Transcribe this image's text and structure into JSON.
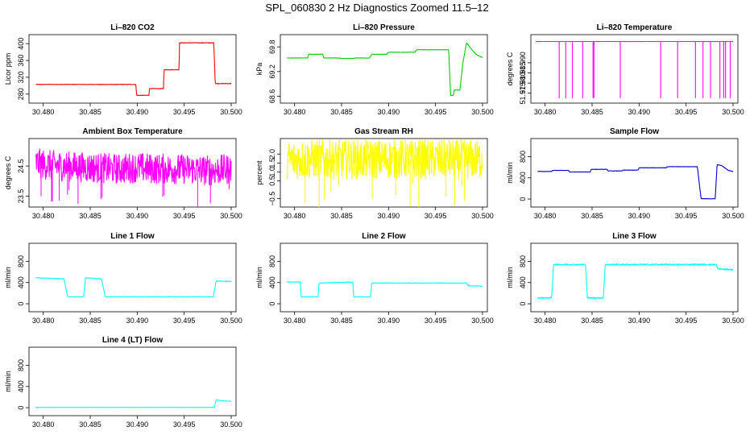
{
  "page": {
    "title": "SPL_060830  2 Hz Diagnostics Zoomed 11.5–12"
  },
  "chart_data": [
    {
      "type": "line",
      "title": "Li–820 CO2",
      "ylabel": "Licor ppm",
      "color": "#ff0000",
      "noise": 0.6,
      "xlim": [
        30.479,
        30.5
      ],
      "ylim": [
        270,
        410
      ],
      "xticks": [
        30.48,
        30.485,
        30.49,
        30.495,
        30.5
      ],
      "xtick_labels": [
        "30.480",
        "30.485",
        "30.490",
        "30.495",
        "30.500"
      ],
      "yticks": [
        280,
        320,
        360,
        400
      ],
      "ytick_labels": [
        "280",
        "320",
        "360",
        "400"
      ],
      "x": [
        30.4792,
        30.48985,
        30.48995,
        30.49125,
        30.4913,
        30.4928,
        30.49285,
        30.49445,
        30.4945,
        30.49815,
        30.4983,
        30.5
      ],
      "y": [
        303,
        303,
        277,
        277,
        293,
        293,
        338,
        338,
        402,
        402,
        305,
        305
      ]
    },
    {
      "type": "line",
      "title": "Li–820 Pressure",
      "ylabel": "kPa",
      "color": "#00cd00",
      "noise": 0.004,
      "xlim": [
        30.479,
        30.5
      ],
      "ylim": [
        68.55,
        69.98
      ],
      "xticks": [
        30.48,
        30.485,
        30.49,
        30.495,
        30.5
      ],
      "xtick_labels": [
        "30.480",
        "30.485",
        "30.490",
        "30.495",
        "30.500"
      ],
      "yticks": [
        68.6,
        69.2,
        69.8
      ],
      "ytick_labels": [
        "68.6",
        "69.2",
        "69.8"
      ],
      "x": [
        30.4792,
        30.4814,
        30.4815,
        30.483,
        30.4831,
        30.4848,
        30.4849,
        30.4863,
        30.4864,
        30.488,
        30.4882,
        30.4898,
        30.49,
        30.4928,
        30.493,
        30.4964,
        30.4966,
        30.4969,
        30.497,
        30.4976,
        30.4979,
        30.4983,
        30.4988,
        30.4993,
        30.4998,
        30.5
      ],
      "y": [
        69.53,
        69.53,
        69.62,
        69.62,
        69.53,
        69.53,
        69.52,
        69.52,
        69.53,
        69.53,
        69.62,
        69.62,
        69.67,
        69.67,
        69.73,
        69.73,
        68.62,
        68.62,
        68.75,
        68.75,
        69.4,
        69.9,
        69.75,
        69.62,
        69.56,
        69.54
      ]
    },
    {
      "type": "line",
      "title": "Li–820 Temperature",
      "ylabel": "degrees C",
      "color": "#ff00ff",
      "noise": 5e-05,
      "xlim": [
        30.479,
        30.5
      ],
      "ylim": [
        51.9725,
        52.0015
      ],
      "xticks": [
        30.48,
        30.485,
        30.49,
        30.495,
        30.5
      ],
      "xtick_labels": [
        "30.480",
        "30.485",
        "30.490",
        "30.495",
        "30.500"
      ],
      "yticks": [
        51.975,
        51.98,
        51.985,
        51.99
      ],
      "ytick_labels": [
        "51.975",
        "51.980",
        "51.985",
        "51.990"
      ],
      "spike_base": 52.0005,
      "spike_low": 51.9726,
      "spikes": [
        30.4815,
        30.4822,
        30.4829,
        30.484,
        30.4851,
        30.4852,
        30.488,
        30.4923,
        30.4941,
        30.496,
        30.4968,
        30.4976,
        30.4986,
        30.499,
        30.4992,
        30.4997
      ]
    },
    {
      "type": "line",
      "title": "Ambient Box Temperature",
      "ylabel": "degrees C",
      "color": "#ff00ff",
      "noise": 0.5,
      "xlim": [
        30.479,
        30.5
      ],
      "ylim": [
        23.3,
        25.25
      ],
      "xticks": [
        30.48,
        30.485,
        30.49,
        30.495,
        30.5
      ],
      "xtick_labels": [
        "30.480",
        "30.485",
        "30.490",
        "30.495",
        "30.500"
      ],
      "yticks": [
        23.5,
        24.5
      ],
      "ytick_labels": [
        "23.5",
        "24.5"
      ],
      "x": [
        30.4792,
        30.48,
        30.482,
        30.485,
        30.488,
        30.49,
        30.492,
        30.495,
        30.498,
        30.5
      ],
      "y": [
        24.6,
        24.55,
        24.5,
        24.45,
        24.4,
        24.45,
        24.4,
        24.4,
        24.35,
        24.4
      ]
    },
    {
      "type": "line",
      "title": "Gas Stream RH",
      "ylabel": "percent",
      "color": "#ffff00",
      "noise": 1.1,
      "xlim": [
        30.479,
        30.5
      ],
      "ylim": [
        -0.7,
        2.6
      ],
      "xticks": [
        30.48,
        30.485,
        30.49,
        30.495,
        30.5
      ],
      "xtick_labels": [
        "30.480",
        "30.485",
        "30.490",
        "30.495",
        "30.500"
      ],
      "yticks": [
        -0.5,
        0.5,
        1.0,
        1.5,
        2.0
      ],
      "ytick_labels": [
        "−0.5",
        "0.5",
        "1.0",
        "1.5",
        "2.0"
      ],
      "x": [
        30.4792,
        30.485,
        30.49,
        30.495,
        30.5
      ],
      "y": [
        1.7,
        1.7,
        1.72,
        1.7,
        1.7
      ]
    },
    {
      "type": "line",
      "title": "Sample Flow",
      "ylabel": "ml/min",
      "color": "#0000cd",
      "noise": 3,
      "xlim": [
        30.479,
        30.5
      ],
      "ylim": [
        -60,
        1050
      ],
      "xticks": [
        30.48,
        30.485,
        30.49,
        30.495,
        30.5
      ],
      "xtick_labels": [
        "30.480",
        "30.485",
        "30.490",
        "30.495",
        "30.500"
      ],
      "yticks": [
        0,
        400,
        800
      ],
      "ytick_labels": [
        "0",
        "400",
        "800"
      ],
      "x": [
        30.4792,
        30.4807,
        30.4808,
        30.4825,
        30.4826,
        30.4848,
        30.4849,
        30.4866,
        30.4867,
        30.4882,
        30.4883,
        30.4899,
        30.49,
        30.4929,
        30.493,
        30.4962,
        30.4966,
        30.4981,
        30.4983,
        30.4988,
        30.4995,
        30.5
      ],
      "y": [
        520,
        520,
        540,
        540,
        510,
        510,
        560,
        560,
        530,
        530,
        545,
        545,
        590,
        590,
        610,
        610,
        5,
        5,
        650,
        630,
        540,
        520
      ]
    },
    {
      "type": "line",
      "title": "Line 1 Flow",
      "ylabel": "ml/min",
      "color": "#00ffff",
      "noise": 5,
      "xlim": [
        30.479,
        30.5
      ],
      "ylim": [
        -60,
        1050
      ],
      "xticks": [
        30.48,
        30.485,
        30.49,
        30.495,
        30.5
      ],
      "xtick_labels": [
        "30.480",
        "30.485",
        "30.490",
        "30.495",
        "30.500"
      ],
      "yticks": [
        0,
        400,
        800
      ],
      "ytick_labels": [
        "0",
        "400",
        "800"
      ],
      "x": [
        30.4792,
        30.4822,
        30.4826,
        30.4843,
        30.4845,
        30.4862,
        30.4866,
        30.4981,
        30.4984,
        30.5
      ],
      "y": [
        490,
        470,
        130,
        130,
        490,
        470,
        130,
        130,
        430,
        420
      ]
    },
    {
      "type": "line",
      "title": "Line 2 Flow",
      "ylabel": "ml/min",
      "color": "#00ffff",
      "noise": 5,
      "xlim": [
        30.479,
        30.5
      ],
      "ylim": [
        -60,
        1050
      ],
      "xticks": [
        30.48,
        30.485,
        30.49,
        30.495,
        30.5
      ],
      "xtick_labels": [
        "30.480",
        "30.485",
        "30.490",
        "30.495",
        "30.500"
      ],
      "yticks": [
        0,
        400,
        800
      ],
      "ytick_labels": [
        "0",
        "400",
        "800"
      ],
      "x": [
        30.4792,
        30.4806,
        30.4807,
        30.4825,
        30.4826,
        30.4862,
        30.4863,
        30.4881,
        30.4882,
        30.4983,
        30.4985,
        30.5
      ],
      "y": [
        410,
        410,
        130,
        130,
        390,
        410,
        130,
        130,
        390,
        390,
        340,
        330
      ]
    },
    {
      "type": "line",
      "title": "Line 3 Flow",
      "ylabel": "ml/min",
      "color": "#00ffff",
      "noise": 12,
      "xlim": [
        30.479,
        30.5
      ],
      "ylim": [
        -60,
        1050
      ],
      "xticks": [
        30.48,
        30.485,
        30.49,
        30.495,
        30.5
      ],
      "xtick_labels": [
        "30.480",
        "30.485",
        "30.490",
        "30.495",
        "30.500"
      ],
      "yticks": [
        0,
        400,
        800
      ],
      "ytick_labels": [
        "0",
        "400",
        "800"
      ],
      "x": [
        30.4792,
        30.4807,
        30.4809,
        30.4843,
        30.4845,
        30.4862,
        30.4864,
        30.4982,
        30.4984,
        30.5
      ],
      "y": [
        110,
        110,
        740,
        740,
        110,
        110,
        740,
        740,
        660,
        640
      ]
    },
    {
      "type": "line",
      "title": "Line 4 (LT) Flow",
      "ylabel": "ml/min",
      "color": "#00ffff",
      "noise": 1,
      "xlim": [
        30.479,
        30.5
      ],
      "ylim": [
        -60,
        1050
      ],
      "xticks": [
        30.48,
        30.485,
        30.49,
        30.495,
        30.5
      ],
      "xtick_labels": [
        "30.480",
        "30.485",
        "30.490",
        "30.495",
        "30.500"
      ],
      "yticks": [
        0,
        400,
        800
      ],
      "ytick_labels": [
        "0",
        "400",
        "800"
      ],
      "x": [
        30.4792,
        30.4982,
        30.4984,
        30.499,
        30.5
      ],
      "y": [
        5,
        5,
        150,
        130,
        120
      ]
    }
  ]
}
